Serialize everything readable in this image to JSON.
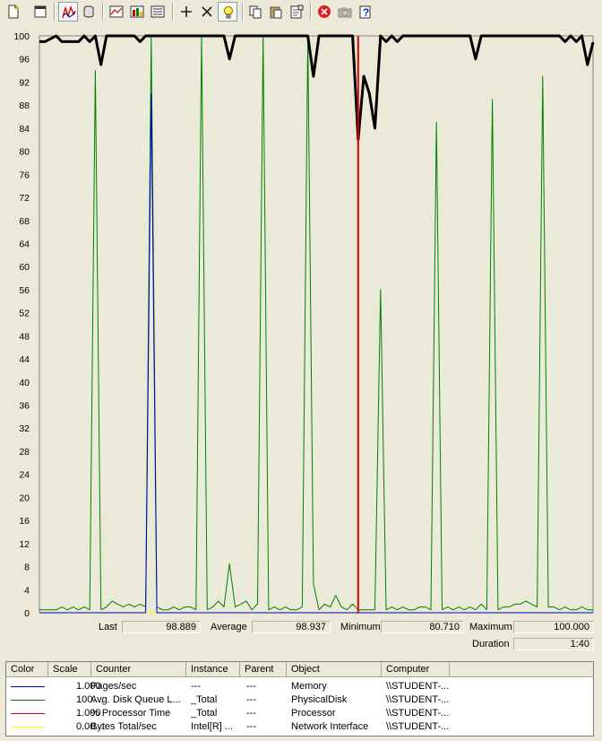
{
  "toolbar": {
    "buttons": [
      {
        "name": "new-counter-set-icon"
      },
      {
        "name": "clear-display-icon"
      },
      {
        "name": "view-current-activity-icon",
        "pressed": true
      },
      {
        "name": "view-log-data-icon"
      },
      {
        "name": "view-graph-icon"
      },
      {
        "name": "view-histogram-icon"
      },
      {
        "name": "view-report-icon"
      },
      {
        "name": "add-counter-icon"
      },
      {
        "name": "delete-counter-icon"
      },
      {
        "name": "highlight-icon",
        "pressed": true
      },
      {
        "name": "copy-properties-icon"
      },
      {
        "name": "paste-counter-list-icon"
      },
      {
        "name": "properties-icon"
      },
      {
        "name": "freeze-display-icon"
      },
      {
        "name": "update-data-icon"
      },
      {
        "name": "help-icon"
      }
    ]
  },
  "colors": {
    "graph_bg": "#ebe9d7",
    "pages_sec": "#0000c0",
    "disk_queue": "#008000",
    "processor": "#000000",
    "bytes_total": "#ffff00",
    "time_bar": "#e00000"
  },
  "chart_data": {
    "type": "line",
    "title": "",
    "xlabel": "",
    "ylabel": "",
    "ylim": [
      0,
      100
    ],
    "yticks": [
      0,
      4,
      8,
      12,
      16,
      20,
      24,
      28,
      32,
      36,
      40,
      44,
      48,
      52,
      56,
      60,
      64,
      68,
      72,
      76,
      80,
      84,
      88,
      92,
      96,
      100
    ],
    "grid": false,
    "legend": "bottom-table",
    "num_points": 100,
    "current_index": 57,
    "series": [
      {
        "name": "% Processor Time",
        "values": [
          99,
          99,
          99.5,
          100,
          99,
          99,
          99,
          99,
          100,
          99,
          100,
          95,
          100,
          100,
          100,
          100,
          100,
          100,
          99,
          100,
          100,
          100,
          100,
          100,
          100,
          100,
          100,
          100,
          100,
          100,
          100,
          100,
          100,
          100,
          96,
          100,
          100,
          100,
          100,
          100,
          100,
          100,
          100,
          100,
          100,
          100,
          100,
          100,
          100,
          93,
          100,
          100,
          100,
          100,
          100,
          100,
          100,
          82,
          93,
          90,
          84,
          100,
          99,
          100,
          99,
          100,
          100,
          100,
          100,
          100,
          100,
          100,
          100,
          100,
          100,
          100,
          100,
          100,
          96,
          100,
          100,
          100,
          100,
          100,
          100,
          100,
          100,
          100,
          100,
          100,
          100,
          100,
          100,
          100,
          99,
          100,
          99,
          100,
          95,
          98.889
        ]
      },
      {
        "name": "Avg. Disk Queue Length",
        "values": [
          0.5,
          0.5,
          0.5,
          0.5,
          1,
          0.5,
          1,
          0.5,
          1,
          0.5,
          94,
          0.5,
          1,
          2,
          1.5,
          1,
          1.5,
          1,
          1.5,
          1,
          100,
          1,
          0.5,
          0.5,
          1,
          0.5,
          1,
          1,
          0.5,
          100,
          0.5,
          1,
          2,
          1,
          8.5,
          1,
          1.5,
          2,
          0.5,
          1.5,
          100,
          0.5,
          1,
          0.5,
          1,
          0.5,
          0.5,
          1,
          100,
          5,
          0.5,
          1.5,
          1,
          3,
          1,
          0.5,
          1.5,
          0.5,
          0.5,
          0.5,
          0.5,
          56,
          0.5,
          1,
          0.5,
          1,
          0.5,
          0.5,
          1,
          1,
          0.5,
          85,
          0.5,
          1,
          0.5,
          1,
          0.5,
          1,
          0.5,
          1.5,
          0.5,
          89,
          0.5,
          1,
          1,
          1.5,
          1.5,
          2,
          1.5,
          1,
          93,
          1,
          1,
          0.5,
          1,
          0.5,
          0.5,
          1,
          0.5,
          0.5
        ]
      },
      {
        "name": "Pages/sec",
        "values": [
          0,
          0,
          0,
          0,
          0,
          0,
          0,
          0,
          0,
          0,
          0,
          0,
          0,
          0,
          0,
          0,
          0,
          0,
          0,
          0,
          90,
          0,
          0,
          0,
          0,
          0,
          0,
          0,
          0,
          0,
          0,
          0,
          0,
          0,
          0,
          0,
          0,
          0,
          0,
          0,
          0,
          0,
          0,
          0,
          0,
          0,
          0,
          0,
          0,
          0,
          0,
          0,
          0,
          0,
          0,
          0,
          0,
          0,
          0,
          0,
          0,
          0,
          0,
          0,
          0,
          0,
          0,
          0,
          0,
          0,
          0,
          0,
          0,
          0,
          0,
          0,
          0,
          0,
          0,
          0,
          0,
          0,
          0,
          0,
          0,
          0,
          0,
          0,
          0,
          0,
          0,
          0,
          0,
          0,
          0,
          0,
          0,
          0,
          0,
          0
        ]
      },
      {
        "name": "Bytes Total/sec",
        "values": [
          0,
          0,
          0,
          0,
          0,
          0,
          0,
          0,
          0,
          0,
          0,
          0,
          0,
          0,
          0,
          0,
          0,
          0,
          0,
          0,
          0,
          0,
          0,
          0,
          0,
          0,
          0,
          0,
          0,
          0,
          0,
          0,
          0,
          0,
          0,
          0,
          0,
          0,
          0,
          0,
          0,
          0,
          0,
          0,
          0,
          0,
          0,
          0,
          0,
          0,
          0,
          0,
          0,
          0,
          0,
          0,
          0,
          0,
          0,
          0,
          0,
          0,
          0,
          0,
          0,
          0,
          0,
          0,
          0,
          0,
          0,
          0,
          0,
          0,
          0,
          0,
          0,
          0,
          0,
          0,
          0,
          0,
          0,
          0,
          0,
          0,
          0,
          0,
          0,
          0,
          0,
          0,
          0,
          0,
          0,
          0,
          0,
          0,
          0,
          0
        ]
      }
    ]
  },
  "stats": {
    "last_label": "Last",
    "last_value": "98.889",
    "average_label": "Average",
    "average_value": "98.937",
    "minimum_label": "Minimum",
    "minimum_value": "80.710",
    "maximum_label": "Maximum",
    "maximum_value": "100.000",
    "duration_label": "Duration",
    "duration_value": "1:40"
  },
  "legend": {
    "headers": [
      "Color",
      "Scale",
      "Counter",
      "Instance",
      "Parent",
      "Object",
      "Computer"
    ],
    "rows": [
      {
        "color": "#0000c0",
        "scale": "1.000",
        "counter": "Pages/sec",
        "instance": "---",
        "parent": "---",
        "object": "Memory",
        "computer": "\\\\STUDENT-..."
      },
      {
        "color": "#008000",
        "scale": "100....",
        "counter": "Avg. Disk Queue L...",
        "instance": "_Total",
        "parent": "---",
        "object": "PhysicalDisk",
        "computer": "\\\\STUDENT-..."
      },
      {
        "color": "#e00000",
        "scale": "1.000",
        "counter": "% Processor Time",
        "instance": "_Total",
        "parent": "---",
        "object": "Processor",
        "computer": "\\\\STUDENT-..."
      },
      {
        "color": "#ffff00",
        "scale": "0.00...",
        "counter": "Bytes Total/sec",
        "instance": "Intel[R] ...",
        "parent": "---",
        "object": "Network Interface",
        "computer": "\\\\STUDENT-..."
      }
    ]
  }
}
